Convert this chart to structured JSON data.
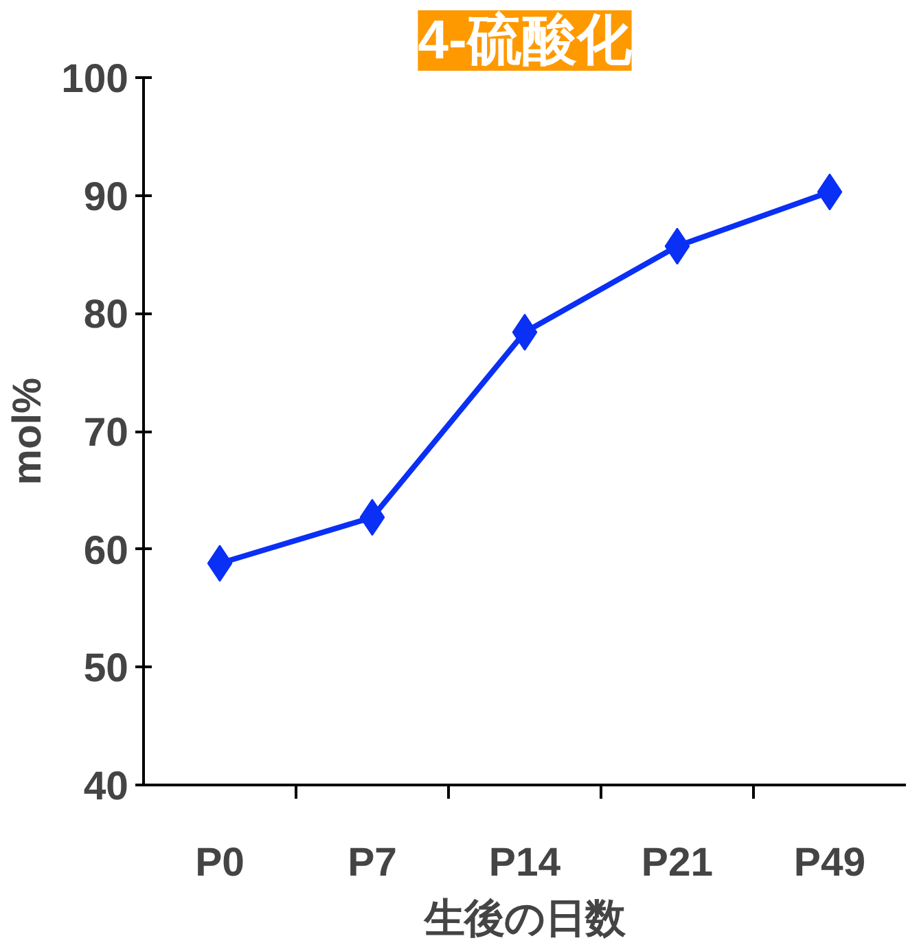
{
  "chart_data": {
    "type": "line",
    "title": "4-硫酸化",
    "xlabel": "生後の日数",
    "ylabel": "mol%",
    "categories": [
      "P0",
      "P7",
      "P14",
      "P21",
      "P49"
    ],
    "series": [
      {
        "color": "#0a2ff5",
        "values": [
          58.8,
          62.7,
          78.4,
          85.7,
          90.3
        ]
      }
    ],
    "ylim": [
      40,
      100
    ],
    "yticks": [
      40,
      50,
      60,
      70,
      80,
      90,
      100
    ],
    "grid": false,
    "marker": "diamond",
    "line_style": "solid"
  }
}
